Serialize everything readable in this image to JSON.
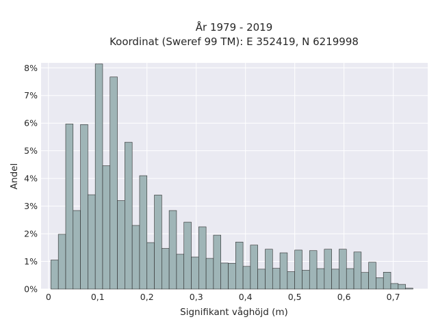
{
  "chart_data": {
    "type": "bar",
    "title_line1": "År 1979 - 2019",
    "title_line2": "Koordinat (Sweref 99 TM): E 352419, N 6219998",
    "xlabel": "Signifikant våghöjd (m)",
    "ylabel": "Andel",
    "xlim": [
      -0.015,
      0.77
    ],
    "ylim": [
      0,
      0.0818
    ],
    "x_ticks": [
      {
        "value": 0.0,
        "label": "0"
      },
      {
        "value": 0.1,
        "label": "0,1"
      },
      {
        "value": 0.2,
        "label": "0,2"
      },
      {
        "value": 0.3,
        "label": "0,3"
      },
      {
        "value": 0.4,
        "label": "0,4"
      },
      {
        "value": 0.5,
        "label": "0,5"
      },
      {
        "value": 0.6,
        "label": "0,6"
      },
      {
        "value": 0.7,
        "label": "0,7"
      }
    ],
    "y_ticks": [
      {
        "value": 0.0,
        "label": "0%"
      },
      {
        "value": 0.01,
        "label": "1%"
      },
      {
        "value": 0.02,
        "label": "2%"
      },
      {
        "value": 0.03,
        "label": "3%"
      },
      {
        "value": 0.04,
        "label": "4%"
      },
      {
        "value": 0.05,
        "label": "5%"
      },
      {
        "value": 0.06,
        "label": "6%"
      },
      {
        "value": 0.07,
        "label": "7%"
      },
      {
        "value": 0.08,
        "label": "8%"
      }
    ],
    "bin_start": 0.005,
    "bin_width": 0.015,
    "values": [
      0.0105,
      0.0198,
      0.0597,
      0.0284,
      0.0595,
      0.0341,
      0.0814,
      0.0446,
      0.0767,
      0.032,
      0.0531,
      0.023,
      0.041,
      0.0168,
      0.034,
      0.0147,
      0.0284,
      0.0126,
      0.0242,
      0.0116,
      0.0225,
      0.0111,
      0.0195,
      0.0094,
      0.0093,
      0.017,
      0.0082,
      0.0159,
      0.0072,
      0.0144,
      0.0075,
      0.0131,
      0.0063,
      0.0141,
      0.0068,
      0.0139,
      0.0074,
      0.0144,
      0.0072,
      0.0144,
      0.0074,
      0.0134,
      0.006,
      0.0097,
      0.0041,
      0.0061,
      0.002,
      0.0017,
      0.0003
    ],
    "grid": true,
    "background": "#eaeaf2",
    "bar_color": "#9fb5b7",
    "bar_edge_color": "#2b2b2b"
  }
}
